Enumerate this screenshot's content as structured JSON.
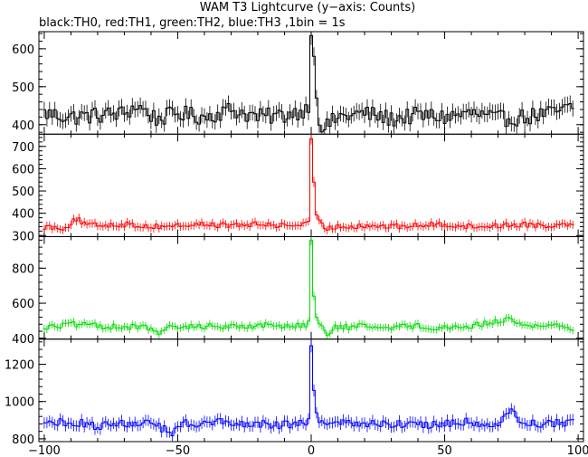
{
  "chart_data": {
    "type": "line",
    "title": "WAM T3 Lightcurve (y−axis: Counts)",
    "subtitle": "black:TH0, red:TH1, green:TH2, blue:TH3 ,1bin = 1s",
    "xlabel": "",
    "ylabel": "",
    "xlim": [
      -102,
      102
    ],
    "x_ticks": [
      -100,
      -50,
      0,
      50,
      100
    ],
    "x_tick_labels": [
      "−100",
      "−50",
      "0",
      "50",
      "100"
    ],
    "bin_seconds": 1,
    "panels": [
      {
        "name": "TH0",
        "color": "#000000",
        "ylim": [
          375,
          645
        ],
        "y_ticks": [
          400,
          500,
          600
        ],
        "baseline": 425,
        "noise": 22,
        "peak_value": 635,
        "anchors": [
          [
            -100,
            430
          ],
          [
            -90,
            420
          ],
          [
            -80,
            425
          ],
          [
            -70,
            430
          ],
          [
            -65,
            450
          ],
          [
            -58,
            415
          ],
          [
            -50,
            430
          ],
          [
            -40,
            420
          ],
          [
            -30,
            440
          ],
          [
            -20,
            420
          ],
          [
            -10,
            425
          ],
          [
            -2,
            440
          ],
          [
            -0.5,
            460
          ],
          [
            0,
            635
          ],
          [
            0.8,
            580
          ],
          [
            1.8,
            470
          ],
          [
            3,
            410
          ],
          [
            5,
            390
          ],
          [
            10,
            420
          ],
          [
            20,
            430
          ],
          [
            30,
            415
          ],
          [
            40,
            425
          ],
          [
            50,
            420
          ],
          [
            60,
            430
          ],
          [
            70,
            415
          ],
          [
            80,
            420
          ],
          [
            90,
            430
          ],
          [
            98,
            445
          ]
        ]
      },
      {
        "name": "TH1",
        "color": "#ff0000",
        "ylim": [
          295,
          755
        ],
        "y_ticks": [
          300,
          400,
          500,
          600,
          700
        ],
        "baseline": 345,
        "noise": 12,
        "peak_value": 735,
        "anchors": [
          [
            -100,
            340
          ],
          [
            -92,
            335
          ],
          [
            -88,
            375
          ],
          [
            -84,
            345
          ],
          [
            -70,
            350
          ],
          [
            -60,
            340
          ],
          [
            -50,
            345
          ],
          [
            -40,
            350
          ],
          [
            -30,
            345
          ],
          [
            -20,
            350
          ],
          [
            -10,
            345
          ],
          [
            -2,
            350
          ],
          [
            -0.5,
            355
          ],
          [
            0,
            735
          ],
          [
            0.8,
            540
          ],
          [
            1.5,
            400
          ],
          [
            3,
            360
          ],
          [
            5,
            330
          ],
          [
            10,
            340
          ],
          [
            20,
            345
          ],
          [
            30,
            340
          ],
          [
            40,
            345
          ],
          [
            50,
            350
          ],
          [
            60,
            340
          ],
          [
            70,
            345
          ],
          [
            80,
            350
          ],
          [
            90,
            345
          ],
          [
            98,
            355
          ]
        ]
      },
      {
        "name": "TH2",
        "color": "#00dd00",
        "ylim": [
          395,
          980
        ],
        "y_ticks": [
          400,
          600,
          800
        ],
        "baseline": 470,
        "noise": 16,
        "peak_value": 960,
        "anchors": [
          [
            -100,
            460
          ],
          [
            -90,
            480
          ],
          [
            -80,
            470
          ],
          [
            -70,
            465
          ],
          [
            -60,
            460
          ],
          [
            -57,
            420
          ],
          [
            -53,
            460
          ],
          [
            -40,
            470
          ],
          [
            -30,
            465
          ],
          [
            -20,
            475
          ],
          [
            -10,
            470
          ],
          [
            -2,
            480
          ],
          [
            -0.5,
            490
          ],
          [
            0,
            960
          ],
          [
            0.8,
            640
          ],
          [
            1.8,
            520
          ],
          [
            3,
            480
          ],
          [
            6,
            420
          ],
          [
            9,
            460
          ],
          [
            20,
            470
          ],
          [
            30,
            465
          ],
          [
            40,
            470
          ],
          [
            50,
            460
          ],
          [
            60,
            470
          ],
          [
            75,
            510
          ],
          [
            80,
            470
          ],
          [
            90,
            475
          ],
          [
            98,
            460
          ]
        ]
      },
      {
        "name": "TH3",
        "color": "#0000ff",
        "ylim": [
          785,
          1335
        ],
        "y_ticks": [
          800,
          1000,
          1200
        ],
        "baseline": 885,
        "noise": 22,
        "peak_value": 1300,
        "anchors": [
          [
            -100,
            880
          ],
          [
            -90,
            890
          ],
          [
            -80,
            870
          ],
          [
            -70,
            885
          ],
          [
            -60,
            880
          ],
          [
            -52,
            830
          ],
          [
            -48,
            880
          ],
          [
            -40,
            885
          ],
          [
            -30,
            890
          ],
          [
            -20,
            880
          ],
          [
            -10,
            875
          ],
          [
            -2,
            890
          ],
          [
            -0.5,
            900
          ],
          [
            0,
            1300
          ],
          [
            0.8,
            1060
          ],
          [
            1.8,
            940
          ],
          [
            3,
            900
          ],
          [
            5,
            870
          ],
          [
            10,
            880
          ],
          [
            20,
            885
          ],
          [
            30,
            880
          ],
          [
            40,
            875
          ],
          [
            50,
            880
          ],
          [
            60,
            890
          ],
          [
            68,
            850
          ],
          [
            75,
            950
          ],
          [
            80,
            885
          ],
          [
            90,
            880
          ],
          [
            98,
            890
          ]
        ]
      }
    ],
    "grid": false,
    "legend": "none"
  }
}
